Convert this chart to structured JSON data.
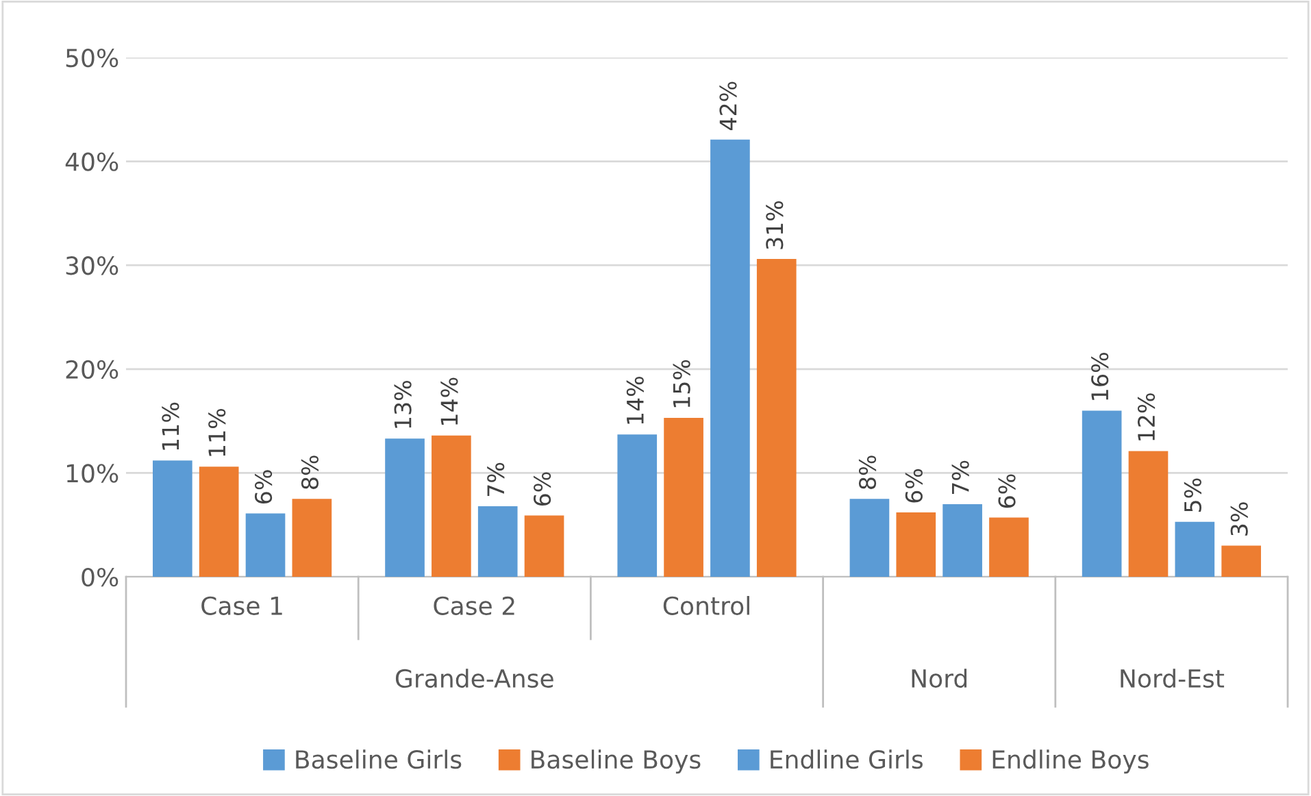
{
  "chart_data": {
    "type": "bar",
    "categories": [
      "Case 1",
      "Case 2",
      "Control",
      null,
      null
    ],
    "series": [
      {
        "name": "Baseline Girls",
        "color": "#5b9bd5",
        "values": [
          11.2,
          13.3,
          13.7,
          7.5,
          16.0
        ],
        "value_labels": [
          "11%",
          "13%",
          "14%",
          "8%",
          "16%"
        ]
      },
      {
        "name": "Baseline Boys",
        "color": "#ed7d31",
        "values": [
          10.6,
          13.6,
          15.3,
          6.2,
          12.1
        ],
        "value_labels": [
          "11%",
          "14%",
          "15%",
          "6%",
          "12%"
        ]
      },
      {
        "name": "Endline Girls",
        "color": "#5b9bd5",
        "values": [
          6.1,
          6.8,
          42.1,
          7.0,
          5.3
        ],
        "value_labels": [
          "6%",
          "7%",
          "42%",
          "7%",
          "5%"
        ]
      },
      {
        "name": "Endline Boys",
        "color": "#ed7d31",
        "values": [
          7.5,
          5.9,
          30.6,
          5.7,
          3.0
        ],
        "value_labels": [
          "8%",
          "6%",
          "31%",
          "6%",
          "3%"
        ]
      }
    ],
    "annotations": [
      "Grande-Anse",
      "Nord",
      "Nord-Est"
    ],
    "ylim": [
      0,
      50
    ],
    "yticks": [
      {
        "value": 0,
        "label": "0%"
      },
      {
        "value": 10,
        "label": "10%"
      },
      {
        "value": 20,
        "label": "20%"
      },
      {
        "value": 30,
        "label": "30%"
      },
      {
        "value": 40,
        "label": "40%"
      },
      {
        "value": 50,
        "label": "50%"
      }
    ],
    "grid": "y",
    "legend": "bottom"
  }
}
